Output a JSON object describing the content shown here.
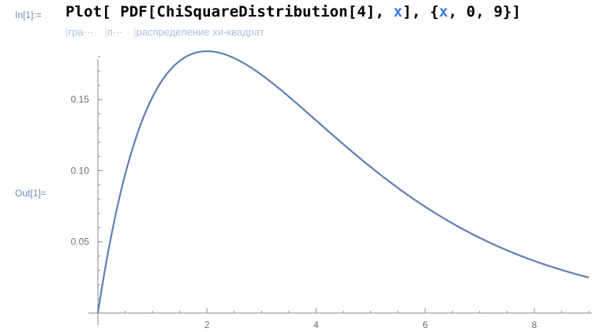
{
  "notebook": {
    "in_label": "In[1]:=",
    "out_label": "Out[1]=",
    "input": {
      "head": "Plot",
      "open": "[ ",
      "func": "PDF",
      "open2": "[",
      "dist": "ChiSquareDistribution",
      "arg": "[4]",
      "comma1": ", ",
      "var": "x",
      "close": "], {",
      "var2": "x",
      "range": ", 0, 9}]"
    },
    "hints": [
      "гра···",
      "п···",
      "распределение хи-квадрат"
    ]
  },
  "chart_data": {
    "type": "line",
    "title": "",
    "xlabel": "",
    "ylabel": "",
    "xlim": [
      0,
      9
    ],
    "ylim": [
      0,
      0.19
    ],
    "x_ticks": [
      2,
      4,
      6,
      8
    ],
    "y_ticks": [
      0.05,
      0.1,
      0.15
    ],
    "y_tick_labels": [
      "0.05",
      "0.10",
      "0.15"
    ],
    "x_tick_labels": [
      "2",
      "4",
      "6",
      "8"
    ],
    "series": [
      {
        "color": "#5e81b5",
        "x": [
          0,
          0.25,
          0.5,
          0.75,
          1,
          1.25,
          1.5,
          1.75,
          2,
          2.5,
          3,
          3.5,
          4,
          4.5,
          5,
          5.5,
          6,
          6.5,
          7,
          7.5,
          8,
          8.5,
          9
        ],
        "y": [
          0,
          0.0551,
          0.0974,
          0.1289,
          0.1516,
          0.1671,
          0.1771,
          0.1823,
          0.1839,
          0.1791,
          0.1673,
          0.1521,
          0.1353,
          0.1186,
          0.1026,
          0.088,
          0.0747,
          0.063,
          0.0528,
          0.0441,
          0.0366,
          0.0303,
          0.025
        ]
      }
    ],
    "grid": false
  }
}
